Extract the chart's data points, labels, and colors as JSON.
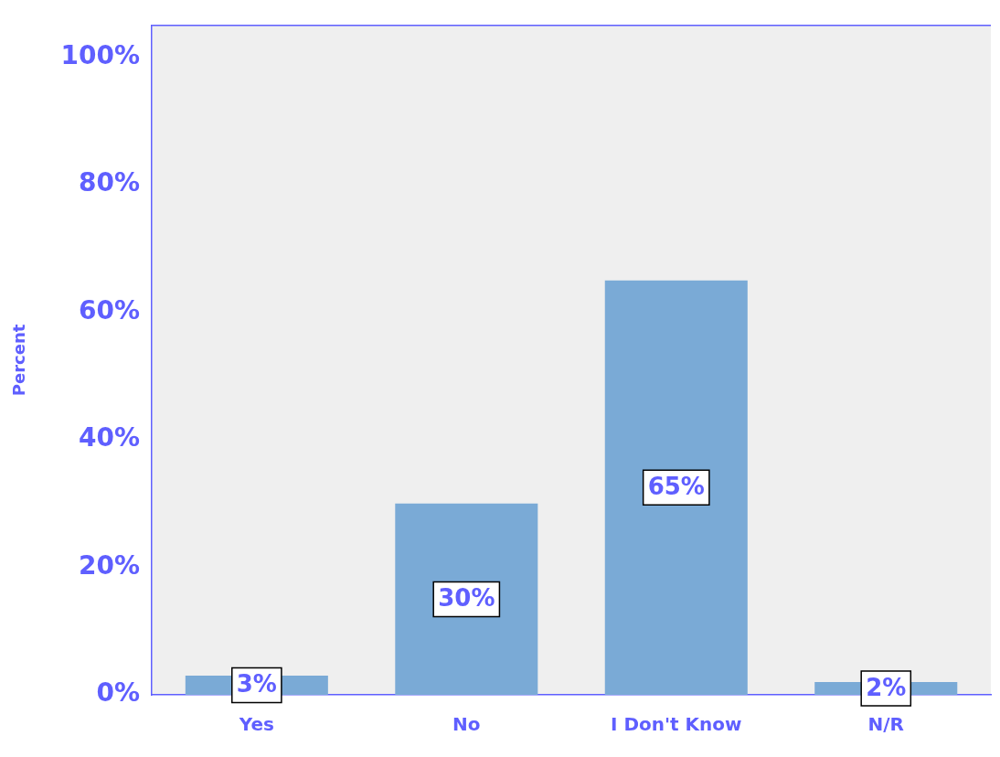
{
  "chart_data": {
    "type": "bar",
    "ylabel": "Percent",
    "categories": [
      "Yes",
      "No",
      "I Don't Know",
      "N/R"
    ],
    "values": [
      3,
      30,
      65,
      2
    ],
    "value_labels": [
      "3%",
      "30%",
      "65%",
      "2%"
    ],
    "color": "#7aaad6",
    "ylim": [
      0,
      105
    ],
    "yticks": [
      {
        "value": 0,
        "label": "0%"
      },
      {
        "value": 20,
        "label": "20%"
      },
      {
        "value": 40,
        "label": "40%"
      },
      {
        "value": 60,
        "label": "60%"
      },
      {
        "value": 80,
        "label": "80%"
      },
      {
        "value": 100,
        "label": "100%"
      }
    ],
    "grid": false,
    "legend": false
  }
}
